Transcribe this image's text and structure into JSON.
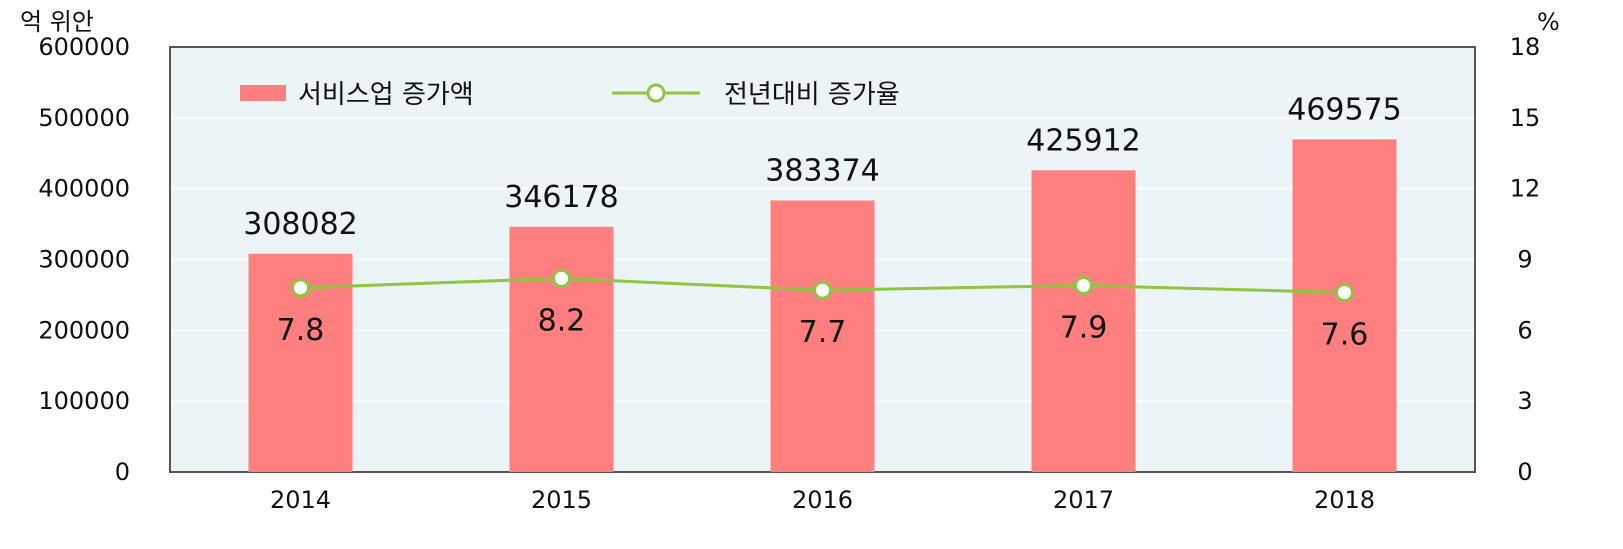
{
  "colors": {
    "plot_background": "#ebf4f6",
    "plot_border": "#555555",
    "gridline": "#ffffff",
    "bar": "#ff7f7f",
    "line": "#8dc63f",
    "marker_fill": "#ffffff"
  },
  "chart_data": {
    "type": "bar",
    "categories": [
      "2014",
      "2015",
      "2016",
      "2017",
      "2018"
    ],
    "series": [
      {
        "name": "서비스업 증가액",
        "type": "bar",
        "axis": "left",
        "values": [
          308082,
          346178,
          383374,
          425912,
          469575
        ],
        "labels": [
          "308082",
          "346178",
          "383374",
          "425912",
          "469575"
        ]
      },
      {
        "name": "전년대비 증가율",
        "type": "line",
        "axis": "right",
        "values": [
          7.8,
          8.2,
          7.7,
          7.9,
          7.6
        ],
        "labels": [
          "7.8",
          "8.2",
          "7.7",
          "7.9",
          "7.6"
        ]
      }
    ],
    "y_left": {
      "unit": "억 위안",
      "range": [
        0,
        600000
      ],
      "ticks": [
        "0",
        "100000",
        "200000",
        "300000",
        "400000",
        "500000",
        "600000"
      ]
    },
    "y_right": {
      "unit": "%",
      "range": [
        0,
        18
      ],
      "ticks": [
        "0",
        "3",
        "6",
        "9",
        "12",
        "15",
        "18"
      ]
    },
    "grid": true,
    "legend_position": "top-left"
  }
}
